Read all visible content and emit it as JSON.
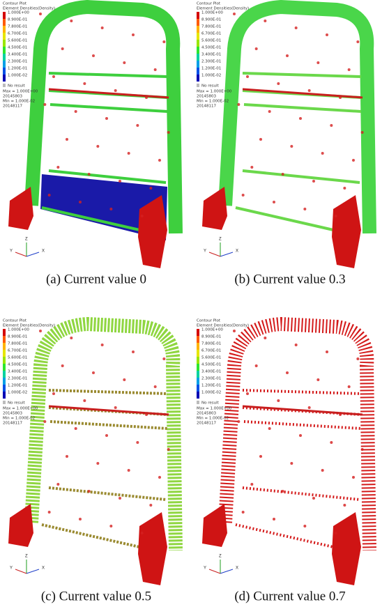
{
  "panels": [
    {
      "legend": {
        "title": "Contour Plot",
        "subtitle": "Element Densities(Density)",
        "levels": [
          "1.000E+00",
          "8.900E-01",
          "7.800E-01",
          "6.700E-01",
          "5.600E-01",
          "4.500E-01",
          "3.400E-01",
          "2.300E-01",
          "1.200E-01",
          "1.000E-02"
        ],
        "no_result": "No result",
        "max": "Max = 1.000E+00",
        "max_id": "20145803",
        "min": "Min = 1.000E-02",
        "min_id": "20148117"
      },
      "axes": [
        "Y",
        "Z",
        "X"
      ],
      "caption": "(a) Current value 0"
    },
    {
      "legend": {
        "title": "Contour Plot",
        "subtitle": "Element Densities(Density)",
        "levels": [
          "1.000E+00",
          "8.900E-01",
          "7.800E-01",
          "6.700E-01",
          "5.600E-01",
          "4.500E-01",
          "3.400E-01",
          "2.300E-01",
          "1.200E-01",
          "1.000E-02"
        ],
        "no_result": "No result",
        "max": "Max = 1.000E+00",
        "max_id": "20145803",
        "min": "Min = 1.000E-02",
        "min_id": "20148117"
      },
      "axes": [
        "Y",
        "Z",
        "X"
      ],
      "caption": "(b) Current value 0.3"
    },
    {
      "legend": {
        "title": "Contour Plot",
        "subtitle": "Element Densities(Density)",
        "levels": [
          "1.000E+00",
          "8.900E-01",
          "7.800E-01",
          "6.700E-01",
          "5.600E-01",
          "4.500E-01",
          "3.400E-01",
          "2.300E-01",
          "1.200E-01",
          "1.000E-02"
        ],
        "no_result": "No result",
        "max": "Max = 1.000E+00",
        "max_id": "20145803",
        "min": "Min = 1.000E-02",
        "min_id": "20148117"
      },
      "axes": [
        "Y",
        "Z",
        "X"
      ],
      "caption": "(c) Current value 0.5"
    },
    {
      "legend": {
        "title": "Contour Plot",
        "subtitle": "Element Densities(Density)",
        "levels": [
          "1.000E+00",
          "8.900E-01",
          "7.800E-01",
          "6.700E-01",
          "5.600E-01",
          "4.500E-01",
          "3.400E-01",
          "2.300E-01",
          "1.200E-01",
          "1.000E-02"
        ],
        "no_result": "No result",
        "max": "Max = 1.000E+00",
        "max_id": "20145803",
        "min": "Min = 1.000E-02",
        "min_id": "20148117"
      },
      "axes": [
        "Y",
        "Z",
        "X"
      ],
      "caption": "(d) Current value 0.7"
    }
  ]
}
